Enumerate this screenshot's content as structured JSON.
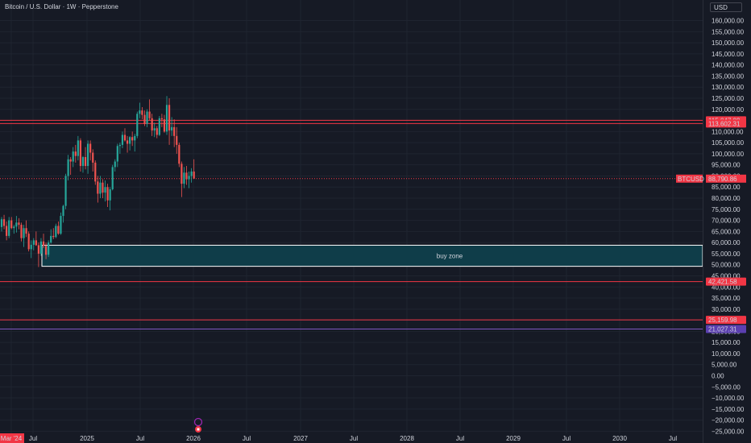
{
  "header": {
    "title": "Bitcoin / U.S. Dollar · 1W · Pepperstone"
  },
  "currency_button": "USD",
  "colors": {
    "background": "#161a25",
    "grid": "#1f2430",
    "up_candle": "#26a69a",
    "down_candle": "#ef5350",
    "resistance_line": "#f23645",
    "support_purple": "#7e57c2",
    "buy_zone_fill": "#0f3d49",
    "buy_zone_border": "#ffffff",
    "tag_red": "#f23645",
    "tag_purple": "#5b3fb0"
  },
  "price_axis": {
    "ticks": [
      "160,000.00",
      "155,000.00",
      "150,000.00",
      "145,000.00",
      "140,000.00",
      "135,000.00",
      "130,000.00",
      "125,000.00",
      "120,000.00",
      "115,000.00",
      "110,000.00",
      "105,000.00",
      "100,000.00",
      "95,000.00",
      "90,000.00",
      "85,000.00",
      "80,000.00",
      "75,000.00",
      "70,000.00",
      "65,000.00",
      "60,000.00",
      "55,000.00",
      "50,000.00",
      "45,000.00",
      "40,000.00",
      "35,000.00",
      "30,000.00",
      "25,000.00",
      "20,000.00",
      "15,000.00",
      "10,000.00",
      "5,000.00",
      "0.00",
      "−5,000.00",
      "−10,000.00",
      "−15,000.00",
      "−20,000.00",
      "−25,000.00"
    ]
  },
  "time_axis": {
    "labels": [
      "Mar '24",
      "Jul",
      "2025",
      "Jul",
      "2026",
      "Jul",
      "2027",
      "Jul",
      "2028",
      "Jul",
      "2029",
      "Jul",
      "2030",
      "Jul"
    ]
  },
  "levels": [
    {
      "name": "resistance-high",
      "price_label": "115,047.09",
      "value": 115047.09,
      "color": "#f23645"
    },
    {
      "name": "resistance-low",
      "price_label": "113,602.31",
      "value": 113602.31,
      "color": "#f23645"
    },
    {
      "name": "support-42k",
      "price_label": "42,421.58",
      "value": 42421.58,
      "color": "#f23645"
    },
    {
      "name": "support-25k",
      "price_label": "25,159.98",
      "value": 25159.98,
      "color": "#f23645"
    },
    {
      "name": "support-21k",
      "price_label": "21,027.31",
      "value": 21027.31,
      "color": "#7e57c2"
    }
  ],
  "current_price": {
    "symbol": "BTCUSD",
    "price_label": "88,790.86",
    "value": 88790.86
  },
  "buy_zone": {
    "label": "buy zone",
    "low": 49300,
    "high": 58800
  },
  "chart_data": {
    "type": "candlestick",
    "title": "Bitcoin / U.S. Dollar · 1W · Pepperstone",
    "ylim": [
      -26000,
      163000
    ],
    "candles_ohlc": [
      [
        67000,
        71500,
        65000,
        70500
      ],
      [
        70500,
        72500,
        66000,
        67500
      ],
      [
        67500,
        69500,
        61000,
        63000
      ],
      [
        63000,
        71500,
        62000,
        70000
      ],
      [
        70000,
        71500,
        66000,
        66500
      ],
      [
        66500,
        68000,
        64000,
        67200
      ],
      [
        67200,
        72000,
        64500,
        69000
      ],
      [
        69000,
        71000,
        66000,
        68000
      ],
      [
        68000,
        69000,
        60500,
        62000
      ],
      [
        62000,
        68000,
        58000,
        66500
      ],
      [
        66500,
        70000,
        62500,
        64000
      ],
      [
        64000,
        65000,
        56000,
        57000
      ],
      [
        57000,
        61000,
        53000,
        59000
      ],
      [
        59000,
        62000,
        56500,
        61000
      ],
      [
        61000,
        65000,
        58500,
        58800
      ],
      [
        58800,
        60000,
        49000,
        55000
      ],
      [
        55000,
        62000,
        54000,
        60500
      ],
      [
        60500,
        64000,
        57500,
        58500
      ],
      [
        58500,
        60000,
        52500,
        54500
      ],
      [
        54500,
        61000,
        53500,
        60000
      ],
      [
        60000,
        66000,
        59500,
        63000
      ],
      [
        63000,
        66500,
        61500,
        62500
      ],
      [
        62500,
        68500,
        62000,
        67500
      ],
      [
        67500,
        69500,
        63500,
        64000
      ],
      [
        64000,
        73500,
        63500,
        72000
      ],
      [
        72000,
        77000,
        69000,
        76500
      ],
      [
        76500,
        91000,
        75000,
        90000
      ],
      [
        90000,
        99500,
        88000,
        97500
      ],
      [
        97500,
        98500,
        90500,
        96500
      ],
      [
        96500,
        103000,
        94000,
        101000
      ],
      [
        101000,
        104000,
        96000,
        99000
      ],
      [
        99000,
        108000,
        97000,
        106000
      ],
      [
        106000,
        107000,
        92000,
        94500
      ],
      [
        94500,
        99000,
        91500,
        98500
      ],
      [
        98500,
        103000,
        93000,
        94500
      ],
      [
        94500,
        106000,
        91000,
        104500
      ],
      [
        104500,
        106000,
        97000,
        100500
      ],
      [
        100500,
        102000,
        92000,
        96000
      ],
      [
        96000,
        97000,
        86000,
        87500
      ],
      [
        87500,
        90000,
        78000,
        82000
      ],
      [
        82000,
        90000,
        80000,
        87000
      ],
      [
        87000,
        88500,
        80000,
        82500
      ],
      [
        82500,
        88000,
        78500,
        85000
      ],
      [
        85000,
        86500,
        76000,
        79000
      ],
      [
        79000,
        85000,
        74500,
        84000
      ],
      [
        84000,
        95000,
        83500,
        94000
      ],
      [
        94000,
        97500,
        92000,
        96500
      ],
      [
        96500,
        104500,
        94000,
        103500
      ],
      [
        103500,
        105000,
        100000,
        104000
      ],
      [
        104000,
        110000,
        102500,
        108500
      ],
      [
        108500,
        111500,
        105500,
        106000
      ],
      [
        106000,
        108000,
        100500,
        104500
      ],
      [
        104500,
        108000,
        101500,
        107500
      ],
      [
        107500,
        110000,
        103500,
        106000
      ],
      [
        106000,
        109000,
        101000,
        108000
      ],
      [
        108000,
        119000,
        107000,
        118000
      ],
      [
        118000,
        123000,
        116000,
        119500
      ],
      [
        119500,
        121000,
        115500,
        117500
      ],
      [
        117500,
        119500,
        112500,
        113500
      ],
      [
        113500,
        120000,
        112000,
        119000
      ],
      [
        119000,
        124500,
        115000,
        116000
      ],
      [
        116000,
        118000,
        108000,
        110500
      ],
      [
        110500,
        114000,
        107500,
        111500
      ],
      [
        111500,
        112500,
        107000,
        108500
      ],
      [
        108500,
        117000,
        108000,
        116000
      ],
      [
        116000,
        118000,
        112000,
        115500
      ],
      [
        115500,
        117500,
        109500,
        110000
      ],
      [
        110000,
        126000,
        108500,
        122000
      ],
      [
        122000,
        125000,
        104000,
        110500
      ],
      [
        110500,
        116500,
        108000,
        112000
      ],
      [
        112000,
        115500,
        103000,
        108000
      ],
      [
        108000,
        112000,
        100000,
        104000
      ],
      [
        104000,
        105000,
        94000,
        95500
      ],
      [
        95500,
        96500,
        80500,
        86500
      ],
      [
        86500,
        94000,
        84500,
        91500
      ],
      [
        91500,
        94500,
        86000,
        88500
      ],
      [
        88500,
        92000,
        84500,
        90000
      ],
      [
        90000,
        93500,
        87000,
        92000
      ],
      [
        92000,
        97500,
        89500,
        88800
      ]
    ]
  }
}
